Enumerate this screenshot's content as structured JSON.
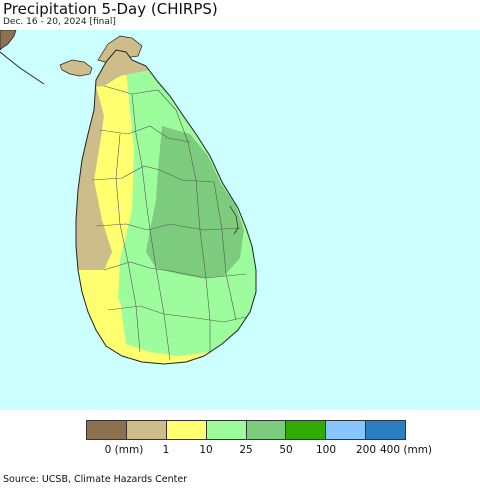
{
  "header": {
    "title": "Precipitation 5-Day (CHIRPS)",
    "subtitle": "Dec. 16 - 20, 2024 [final]"
  },
  "map": {
    "region": "Sri Lanka",
    "ocean_color": "#ccffff",
    "boundary_color": "#555555"
  },
  "legend": {
    "colors": [
      "#8b7150",
      "#cdbd8a",
      "#ffff70",
      "#9dfd9d",
      "#7dcc7d",
      "#31ab00",
      "#88c4ff",
      "#2b7ec0"
    ],
    "ticks": [
      {
        "label": "0 (mm)",
        "value": 0
      },
      {
        "label": "1",
        "value": 1
      },
      {
        "label": "10",
        "value": 10
      },
      {
        "label": "25",
        "value": 25
      },
      {
        "label": "50",
        "value": 50
      },
      {
        "label": "100",
        "value": 100
      },
      {
        "label": "200",
        "value": 200
      },
      {
        "label": "400 (mm)",
        "value": 400
      }
    ]
  },
  "footer": {
    "source": "Source: UCSB, Climate Hazards Center"
  }
}
